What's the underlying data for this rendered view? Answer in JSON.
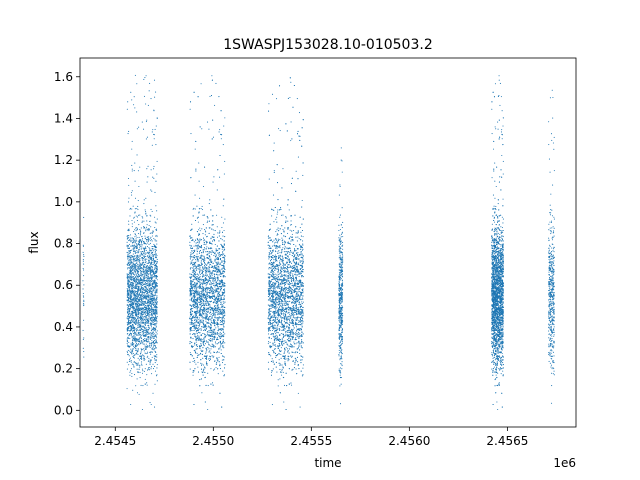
{
  "chart_data": {
    "type": "scatter",
    "title": "1SWASPJ153028.10-010503.2",
    "xlabel": "time",
    "ylabel": "flux",
    "x_offset_label": "1e6",
    "xlim": [
      2454320,
      2456850
    ],
    "ylim": [
      -0.08,
      1.69
    ],
    "x_ticks": [
      2454500,
      2455000,
      2455500,
      2456000,
      2456500
    ],
    "x_tick_labels": [
      "2.4545",
      "2.4550",
      "2.4555",
      "2.4560",
      "2.4565"
    ],
    "y_ticks": [
      0.0,
      0.2,
      0.4,
      0.6,
      0.8,
      1.0,
      1.2,
      1.4,
      1.6
    ],
    "y_tick_labels": [
      "0.0",
      "0.2",
      "0.4",
      "0.6",
      "0.8",
      "1.0",
      "1.2",
      "1.4",
      "1.6"
    ],
    "grid": false,
    "legend": "none",
    "point_color": "#1f77b4",
    "observing_seasons": [
      {
        "x_start": 2454335,
        "x_end": 2454340,
        "y_min": 0.07,
        "y_max": 1.14,
        "density": "sparse"
      },
      {
        "x_start": 2454560,
        "x_end": 2454715,
        "y_min": 0.0,
        "y_max": 1.61,
        "density": "dense"
      },
      {
        "x_start": 2454880,
        "x_end": 2455060,
        "y_min": 0.0,
        "y_max": 1.61,
        "density": "dense"
      },
      {
        "x_start": 2455280,
        "x_end": 2455460,
        "y_min": 0.0,
        "y_max": 1.6,
        "density": "dense"
      },
      {
        "x_start": 2455640,
        "x_end": 2455660,
        "y_min": 0.0,
        "y_max": 1.28,
        "density": "medium"
      },
      {
        "x_start": 2456420,
        "x_end": 2456480,
        "y_min": 0.0,
        "y_max": 1.61,
        "density": "dense"
      },
      {
        "x_start": 2456710,
        "x_end": 2456740,
        "y_min": 0.03,
        "y_max": 1.54,
        "density": "medium"
      }
    ]
  }
}
